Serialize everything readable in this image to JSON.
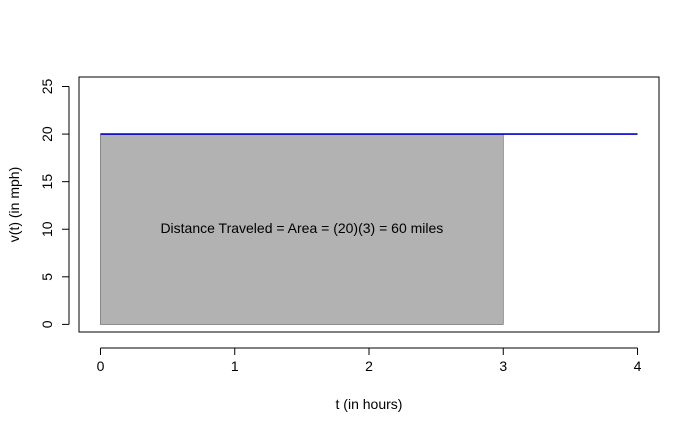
{
  "chart_data": {
    "type": "line",
    "xlabel": "t (in hours)",
    "ylabel": "v(t) (in mph)",
    "xlim": [
      -0.16,
      4.16
    ],
    "ylim": [
      -0.8,
      26
    ],
    "x_ticks": [
      0,
      1,
      2,
      3,
      4
    ],
    "y_ticks": [
      0,
      5,
      10,
      15,
      20,
      25
    ],
    "series": [
      {
        "x": [
          0,
          4
        ],
        "y": [
          20,
          20
        ],
        "color": "#0000cc"
      }
    ],
    "shaded_region": {
      "x_from": 0,
      "x_to": 3,
      "y_from": 0,
      "y_to": 20,
      "color": "#b2b2b2"
    },
    "annotation": {
      "text": "Distance Traveled = Area = (20)(3) = 60 miles",
      "x": 1.5,
      "y": 10
    },
    "grid": false,
    "legend": "none"
  }
}
